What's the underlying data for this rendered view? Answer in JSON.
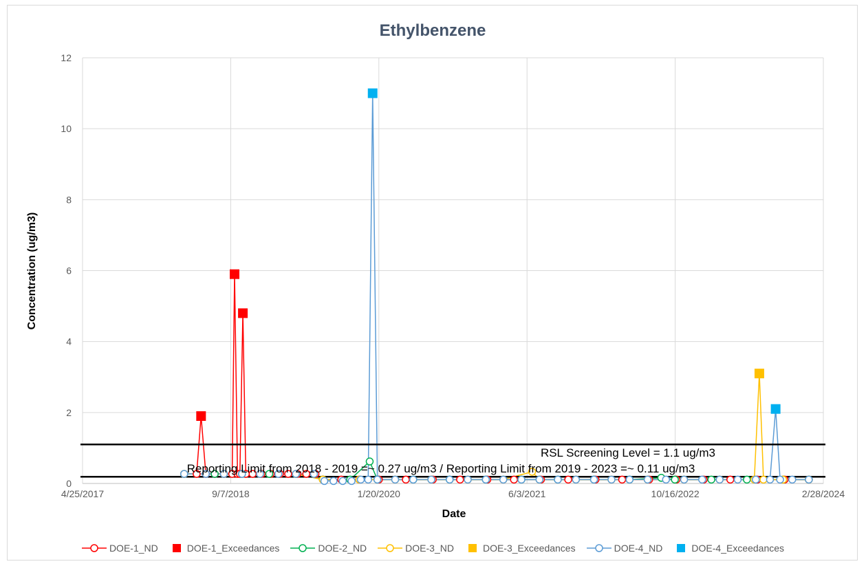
{
  "chart_data": {
    "type": "line",
    "title": "Ethylbenzene",
    "xlabel": "Date",
    "ylabel": "Concentration (ug/m3)",
    "xlim": [
      "2017-04-25",
      "2024-02-28"
    ],
    "ylim": [
      0,
      12
    ],
    "x_ticks": [
      "4/25/2017",
      "9/7/2018",
      "1/20/2020",
      "6/3/2021",
      "10/16/2022",
      "2/28/2024"
    ],
    "y_ticks": [
      0,
      2,
      4,
      6,
      8,
      10,
      12
    ],
    "grid": "vertical and horizontal",
    "legend_position": "bottom",
    "reference_lines": [
      {
        "value": 1.1,
        "label": "RSL Screening Level = 1.1 ug/m3",
        "color": "#000000"
      },
      {
        "value": 0.19,
        "label": "Reporting Limit from 2018 - 2019 =~ 0.27 ug/m3 / Reporting Limit from 2019 - 2023 =~ 0.11 ug/m3",
        "color": "#000000"
      }
    ],
    "series": [
      {
        "name": "DOE-1_ND",
        "style": "line-open-circle",
        "color": "#ff0000",
        "points": [
          [
            "2018-04-03",
            0.27
          ],
          [
            "2018-05-15",
            0.27
          ],
          [
            "2018-05-30",
            1.9
          ],
          [
            "2018-06-15",
            0.27
          ],
          [
            "2018-07-15",
            0.27
          ],
          [
            "2018-08-15",
            0.27
          ],
          [
            "2018-09-12",
            0.27
          ],
          [
            "2018-09-20",
            5.9
          ],
          [
            "2018-09-30",
            0.27
          ],
          [
            "2018-10-08",
            0.27
          ],
          [
            "2018-10-18",
            4.8
          ],
          [
            "2018-10-28",
            0.27
          ],
          [
            "2018-11-20",
            0.27
          ],
          [
            "2018-12-20",
            0.27
          ],
          [
            "2019-01-20",
            0.27
          ],
          [
            "2019-02-20",
            0.27
          ],
          [
            "2019-03-20",
            0.27
          ],
          [
            "2019-04-20",
            0.27
          ],
          [
            "2019-05-20",
            0.27
          ],
          [
            "2019-06-20",
            0.27
          ],
          [
            "2019-07-15",
            0.11
          ],
          [
            "2019-09-15",
            0.11
          ],
          [
            "2019-11-15",
            0.11
          ],
          [
            "2020-01-20",
            0.11
          ],
          [
            "2020-04-20",
            0.11
          ],
          [
            "2020-07-20",
            0.11
          ],
          [
            "2020-10-20",
            0.11
          ],
          [
            "2021-01-20",
            0.11
          ],
          [
            "2021-04-20",
            0.11
          ],
          [
            "2021-07-20",
            0.11
          ],
          [
            "2021-10-20",
            0.11
          ],
          [
            "2022-01-20",
            0.11
          ],
          [
            "2022-04-20",
            0.11
          ],
          [
            "2022-07-20",
            0.11
          ],
          [
            "2022-10-20",
            0.11
          ],
          [
            "2023-01-20",
            0.11
          ],
          [
            "2023-04-20",
            0.11
          ],
          [
            "2023-07-20",
            0.11
          ],
          [
            "2023-10-20",
            0.11
          ],
          [
            "2024-01-10",
            0.11
          ]
        ]
      },
      {
        "name": "DOE-1_Exceedances",
        "style": "square",
        "color": "#ff0000",
        "points": [
          [
            "2018-05-30",
            1.9
          ],
          [
            "2018-09-20",
            5.9
          ],
          [
            "2018-10-18",
            4.8
          ]
        ]
      },
      {
        "name": "DOE-2_ND",
        "style": "line-open-circle",
        "color": "#00b050",
        "points": [
          [
            "2018-04-03",
            0.27
          ],
          [
            "2018-07-15",
            0.27
          ],
          [
            "2018-10-15",
            0.27
          ],
          [
            "2019-01-15",
            0.27
          ],
          [
            "2019-04-15",
            0.27
          ],
          [
            "2019-07-15",
            0.11
          ],
          [
            "2019-10-15",
            0.11
          ],
          [
            "2019-12-20",
            0.62
          ],
          [
            "2020-01-15",
            0.11
          ],
          [
            "2020-05-15",
            0.11
          ],
          [
            "2020-09-15",
            0.11
          ],
          [
            "2021-01-15",
            0.11
          ],
          [
            "2021-05-15",
            0.11
          ],
          [
            "2021-09-15",
            0.11
          ],
          [
            "2022-01-15",
            0.11
          ],
          [
            "2022-05-15",
            0.11
          ],
          [
            "2022-08-30",
            0.16
          ],
          [
            "2022-10-15",
            0.11
          ],
          [
            "2023-02-15",
            0.11
          ],
          [
            "2023-06-15",
            0.11
          ],
          [
            "2023-10-15",
            0.11
          ],
          [
            "2024-01-10",
            0.11
          ]
        ]
      },
      {
        "name": "DOE-3_ND",
        "style": "line-open-circle",
        "color": "#ffc000",
        "points": [
          [
            "2018-04-03",
            0.27
          ],
          [
            "2018-08-15",
            0.27
          ],
          [
            "2018-12-15",
            0.27
          ],
          [
            "2019-04-15",
            0.27
          ],
          [
            "2019-07-15",
            0.11
          ],
          [
            "2019-11-15",
            0.11
          ],
          [
            "2020-03-15",
            0.11
          ],
          [
            "2020-07-15",
            0.11
          ],
          [
            "2020-11-15",
            0.11
          ],
          [
            "2021-03-15",
            0.11
          ],
          [
            "2021-06-20",
            0.33
          ],
          [
            "2021-07-15",
            0.11
          ],
          [
            "2021-11-15",
            0.11
          ],
          [
            "2022-03-15",
            0.11
          ],
          [
            "2022-07-15",
            0.11
          ],
          [
            "2022-11-15",
            0.11
          ],
          [
            "2023-03-15",
            0.11
          ],
          [
            "2023-07-10",
            0.11
          ],
          [
            "2023-07-27",
            3.1
          ],
          [
            "2023-08-10",
            0.11
          ],
          [
            "2023-10-15",
            0.11
          ],
          [
            "2024-01-10",
            0.11
          ]
        ]
      },
      {
        "name": "DOE-3_Exceedances",
        "style": "square",
        "color": "#ffc000",
        "points": [
          [
            "2023-07-27",
            3.1
          ]
        ]
      },
      {
        "name": "DOE-4_ND",
        "style": "line-open-circle",
        "color": "#5b9bd5",
        "points": [
          [
            "2018-04-03",
            0.27
          ],
          [
            "2018-06-15",
            0.27
          ],
          [
            "2018-08-15",
            0.27
          ],
          [
            "2018-10-15",
            0.27
          ],
          [
            "2018-12-15",
            0.27
          ],
          [
            "2019-02-15",
            0.27
          ],
          [
            "2019-04-15",
            0.27
          ],
          [
            "2019-06-15",
            0.27
          ],
          [
            "2019-07-20",
            0.07
          ],
          [
            "2019-08-20",
            0.07
          ],
          [
            "2019-09-20",
            0.07
          ],
          [
            "2019-10-20",
            0.07
          ],
          [
            "2019-11-20",
            0.11
          ],
          [
            "2019-12-15",
            0.11
          ],
          [
            "2019-12-30",
            11
          ],
          [
            "2020-01-15",
            0.11
          ],
          [
            "2020-03-15",
            0.11
          ],
          [
            "2020-05-15",
            0.11
          ],
          [
            "2020-07-15",
            0.11
          ],
          [
            "2020-09-15",
            0.11
          ],
          [
            "2020-11-15",
            0.11
          ],
          [
            "2021-01-15",
            0.11
          ],
          [
            "2021-03-15",
            0.11
          ],
          [
            "2021-05-15",
            0.11
          ],
          [
            "2021-07-15",
            0.11
          ],
          [
            "2021-09-15",
            0.11
          ],
          [
            "2021-11-15",
            0.11
          ],
          [
            "2022-01-15",
            0.11
          ],
          [
            "2022-03-15",
            0.11
          ],
          [
            "2022-05-15",
            0.11
          ],
          [
            "2022-07-15",
            0.11
          ],
          [
            "2022-09-15",
            0.11
          ],
          [
            "2022-11-15",
            0.11
          ],
          [
            "2023-01-15",
            0.11
          ],
          [
            "2023-03-15",
            0.11
          ],
          [
            "2023-05-15",
            0.11
          ],
          [
            "2023-07-15",
            0.11
          ],
          [
            "2023-09-01",
            0.11
          ],
          [
            "2023-09-20",
            2.1
          ],
          [
            "2023-10-05",
            0.11
          ],
          [
            "2023-11-15",
            0.11
          ],
          [
            "2024-01-10",
            0.11
          ]
        ]
      },
      {
        "name": "DOE-4_Exceedances",
        "style": "square",
        "color": "#00b0f0",
        "points": [
          [
            "2019-12-30",
            11
          ],
          [
            "2023-09-20",
            2.1
          ]
        ]
      }
    ]
  }
}
